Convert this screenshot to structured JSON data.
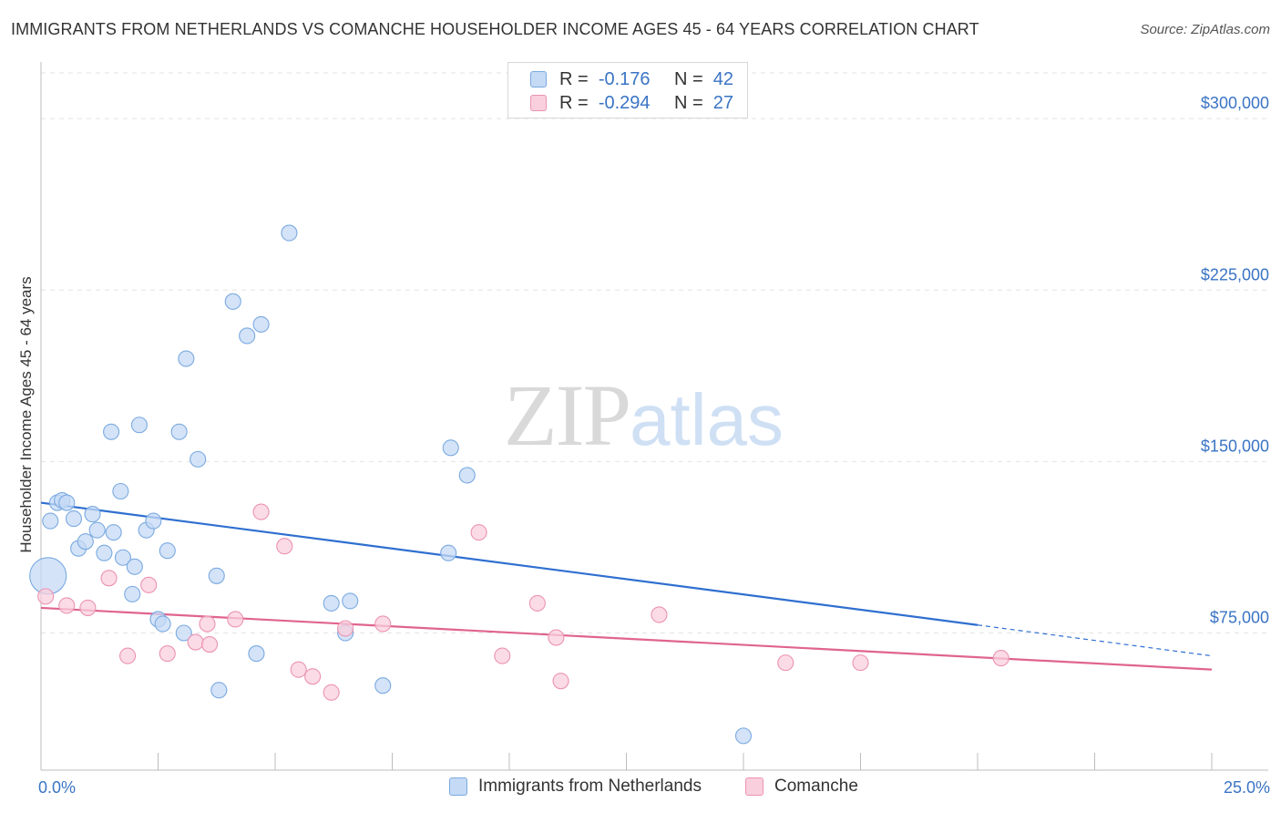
{
  "title": "IMMIGRANTS FROM NETHERLANDS VS COMANCHE HOUSEHOLDER INCOME AGES 45 - 64 YEARS CORRELATION CHART",
  "source": "Source: ZipAtlas.com",
  "watermark": {
    "zip": "ZIP",
    "atlas": "atlas"
  },
  "legend_top": [
    {
      "r_label": "R =",
      "r_value": "-0.176",
      "n_label": "N =",
      "n_value": "42"
    },
    {
      "r_label": "R =",
      "r_value": "-0.294",
      "n_label": "N =",
      "n_value": "27"
    }
  ],
  "colors": {
    "blue_fill": "#c5daf5",
    "blue_stroke": "#7aaae0",
    "blue_line": "#2f6fd0",
    "pink_fill": "#f9cfdd",
    "pink_stroke": "#eb93b2",
    "pink_line": "#e0648f",
    "grid": "#e3e3e3",
    "tick_text": "#3a74c4"
  },
  "chart_data": {
    "type": "scatter",
    "title": "IMMIGRANTS FROM NETHERLANDS VS COMANCHE HOUSEHOLDER INCOME AGES 45 - 64 YEARS CORRELATION CHART",
    "xlabel": "",
    "ylabel": "Householder Income Ages 45 - 64 years",
    "xlim": [
      0,
      25
    ],
    "ylim": [
      15000,
      320000
    ],
    "x_tick_labels": [
      {
        "value": 0,
        "label": "0.0%"
      },
      {
        "value": 25,
        "label": "25.0%"
      }
    ],
    "y_ticks": [
      {
        "value": 75000,
        "label": "$75,000"
      },
      {
        "value": 150000,
        "label": "$150,000"
      },
      {
        "value": 225000,
        "label": "$225,000"
      },
      {
        "value": 300000,
        "label": "$300,000"
      }
    ],
    "legend_position": "bottom",
    "series": [
      {
        "name": "Immigrants from Netherlands",
        "color": "#7aaae0",
        "points": [
          {
            "x": 0.15,
            "y": 100000,
            "big": true
          },
          {
            "x": 0.2,
            "y": 124000
          },
          {
            "x": 0.35,
            "y": 132000
          },
          {
            "x": 0.45,
            "y": 133000
          },
          {
            "x": 0.55,
            "y": 132000
          },
          {
            "x": 0.7,
            "y": 125000
          },
          {
            "x": 0.8,
            "y": 112000
          },
          {
            "x": 0.95,
            "y": 115000
          },
          {
            "x": 1.1,
            "y": 127000
          },
          {
            "x": 1.2,
            "y": 120000
          },
          {
            "x": 1.35,
            "y": 110000
          },
          {
            "x": 1.5,
            "y": 163000
          },
          {
            "x": 1.55,
            "y": 119000
          },
          {
            "x": 1.7,
            "y": 137000
          },
          {
            "x": 1.75,
            "y": 108000
          },
          {
            "x": 1.95,
            "y": 92000
          },
          {
            "x": 2.0,
            "y": 104000
          },
          {
            "x": 2.1,
            "y": 166000
          },
          {
            "x": 2.25,
            "y": 120000
          },
          {
            "x": 2.4,
            "y": 124000
          },
          {
            "x": 2.5,
            "y": 81000
          },
          {
            "x": 2.6,
            "y": 79000
          },
          {
            "x": 2.7,
            "y": 111000
          },
          {
            "x": 2.95,
            "y": 163000
          },
          {
            "x": 3.05,
            "y": 75000
          },
          {
            "x": 3.1,
            "y": 195000
          },
          {
            "x": 3.35,
            "y": 151000
          },
          {
            "x": 3.75,
            "y": 100000
          },
          {
            "x": 3.8,
            "y": 50000
          },
          {
            "x": 4.1,
            "y": 220000
          },
          {
            "x": 4.4,
            "y": 205000
          },
          {
            "x": 4.6,
            "y": 66000
          },
          {
            "x": 4.7,
            "y": 210000
          },
          {
            "x": 5.3,
            "y": 250000
          },
          {
            "x": 6.2,
            "y": 88000
          },
          {
            "x": 6.5,
            "y": 75000
          },
          {
            "x": 6.6,
            "y": 89000
          },
          {
            "x": 7.3,
            "y": 52000
          },
          {
            "x": 8.7,
            "y": 110000
          },
          {
            "x": 8.75,
            "y": 156000
          },
          {
            "x": 9.1,
            "y": 144000
          },
          {
            "x": 15.0,
            "y": 30000
          }
        ]
      },
      {
        "name": "Comanche",
        "color": "#eb93b2",
        "points": [
          {
            "x": 0.1,
            "y": 91000
          },
          {
            "x": 0.55,
            "y": 87000
          },
          {
            "x": 1.0,
            "y": 86000
          },
          {
            "x": 1.45,
            "y": 99000
          },
          {
            "x": 1.85,
            "y": 65000
          },
          {
            "x": 2.3,
            "y": 96000
          },
          {
            "x": 2.7,
            "y": 66000
          },
          {
            "x": 3.3,
            "y": 71000
          },
          {
            "x": 3.55,
            "y": 79000
          },
          {
            "x": 3.6,
            "y": 70000
          },
          {
            "x": 4.15,
            "y": 81000
          },
          {
            "x": 4.7,
            "y": 128000
          },
          {
            "x": 5.2,
            "y": 113000
          },
          {
            "x": 5.5,
            "y": 59000
          },
          {
            "x": 5.8,
            "y": 56000
          },
          {
            "x": 6.2,
            "y": 49000
          },
          {
            "x": 6.5,
            "y": 77000
          },
          {
            "x": 7.3,
            "y": 79000
          },
          {
            "x": 9.35,
            "y": 119000
          },
          {
            "x": 9.85,
            "y": 65000
          },
          {
            "x": 10.6,
            "y": 88000
          },
          {
            "x": 11.0,
            "y": 73000
          },
          {
            "x": 11.1,
            "y": 54000
          },
          {
            "x": 13.2,
            "y": 83000
          },
          {
            "x": 15.9,
            "y": 62000
          },
          {
            "x": 17.5,
            "y": 62000
          },
          {
            "x": 20.5,
            "y": 64000
          }
        ]
      }
    ],
    "trend_lines": [
      {
        "series": "Immigrants from Netherlands",
        "x0": 0,
        "y0": 132000,
        "x1": 20.0,
        "y1": 78500,
        "dash_to_x": 25,
        "dash_to_y": 65000
      },
      {
        "series": "Comanche",
        "x0": 0,
        "y0": 86000,
        "x1": 25,
        "y1": 59000
      }
    ]
  }
}
